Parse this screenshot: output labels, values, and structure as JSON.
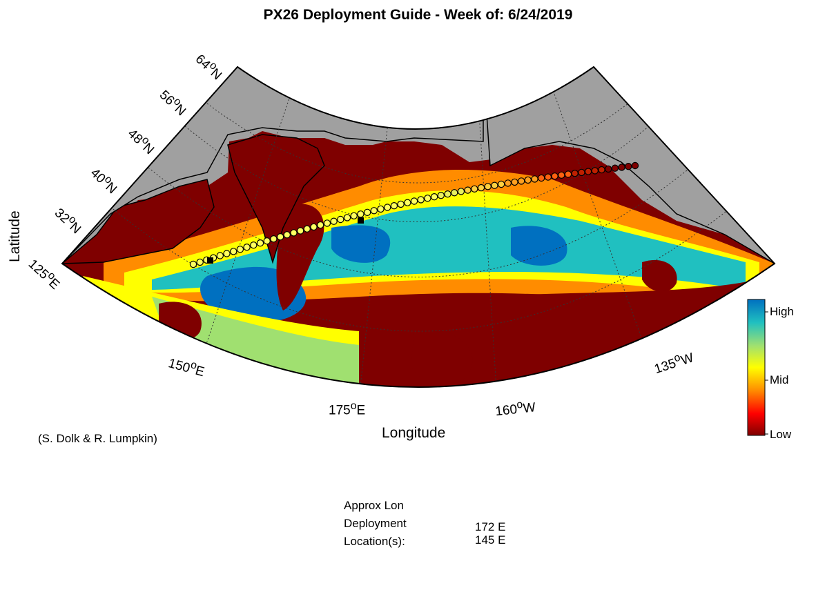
{
  "title": "PX26 Deployment Guide - Week of: 6/24/2019",
  "credit": "(S. Dolk & R. Lumpkin)",
  "axes": {
    "xlabel": "Longitude",
    "ylabel": "Latitude"
  },
  "lat_ticks": [
    {
      "deg": "64",
      "hem": "N"
    },
    {
      "deg": "56",
      "hem": "N"
    },
    {
      "deg": "48",
      "hem": "N"
    },
    {
      "deg": "40",
      "hem": "N"
    },
    {
      "deg": "32",
      "hem": "N"
    },
    {
      "deg": "125",
      "hem": "E"
    }
  ],
  "lon_ticks": [
    {
      "deg": "150",
      "hem": "E"
    },
    {
      "deg": "175",
      "hem": "E"
    },
    {
      "deg": "160",
      "hem": "W"
    },
    {
      "deg": "135",
      "hem": "W"
    }
  ],
  "colorbar": {
    "high": "High",
    "mid": "Mid",
    "low": "Low",
    "colors": [
      "#7f0000",
      "#ff0000",
      "#ff8c00",
      "#ffff00",
      "#a0e070",
      "#20c0c0",
      "#0070c0"
    ]
  },
  "deployment": {
    "approx_lon": "Approx Lon",
    "deployment": "Deployment",
    "locations_label": "Location(s):",
    "locations": [
      "172 E",
      "145 E"
    ]
  },
  "chart_data": {
    "type": "heatmap",
    "title": "PX26 Deployment Guide - Week of: 6/24/2019",
    "xlabel": "Longitude",
    "ylabel": "Latitude",
    "lon_range": [
      125,
      235
    ],
    "lat_range": [
      20,
      64
    ],
    "color_scale": [
      "Low",
      "Mid",
      "High"
    ],
    "track": {
      "from": "western Pacific ~35N 148E",
      "to": "Gulf of Alaska ~57N 150W"
    },
    "deployment_lons": [
      "172 E",
      "145 E"
    ]
  }
}
